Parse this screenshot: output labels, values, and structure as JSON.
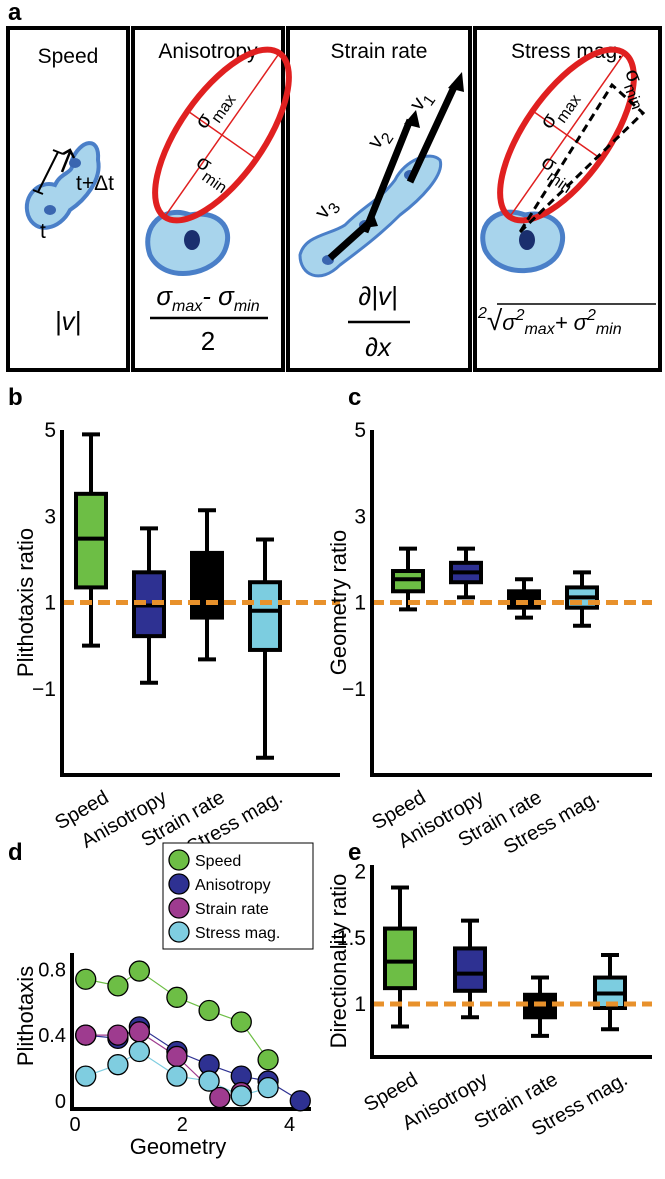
{
  "diagram": {
    "label": "a",
    "panels": [
      {
        "title": "Speed",
        "annotations": [
          "t",
          "t+Δt"
        ],
        "formula": "|v|"
      },
      {
        "title": "Anisotropy",
        "annotations": [
          "σ",
          "max",
          "σ",
          "min"
        ],
        "numerator": [
          "σ",
          "max",
          "- σ",
          "min"
        ],
        "denominator": "2"
      },
      {
        "title": "Strain rate",
        "annotations": [
          "v",
          "3",
          "v",
          "2",
          "v",
          "1"
        ],
        "numerator": "∂|v|",
        "denominator": "∂x"
      },
      {
        "title": "Stress mag.",
        "annotations": [
          "σ",
          "min",
          "σ",
          "max",
          "σ",
          "min"
        ],
        "formula": [
          "2",
          "√",
          "σ",
          "2",
          "max",
          "+ σ",
          "2",
          "min"
        ]
      }
    ]
  },
  "chart_data": [
    {
      "type": "box",
      "panel_label": "b",
      "ylabel": "Plithotaxis ratio",
      "categories": [
        "Speed",
        "Anisotropy",
        "Strain rate",
        "Stress mag."
      ],
      "colors": [
        "#6dbe45",
        "#2e3192",
        "#000000",
        "#7ccde0"
      ],
      "boxes": [
        {
          "whislo": 0,
          "q1": 1.35,
          "med": 2.48,
          "q3": 3.52,
          "whishi": 4.9
        },
        {
          "whislo": -0.86,
          "q1": 0.22,
          "med": 0.93,
          "q3": 1.7,
          "whishi": 2.72
        },
        {
          "whislo": -0.32,
          "q1": 0.65,
          "med": 1.4,
          "q3": 2.15,
          "whishi": 3.14
        },
        {
          "whislo": -2.6,
          "q1": -0.1,
          "med": 0.81,
          "q3": 1.47,
          "whishi": 2.46
        }
      ],
      "reference_line": 1,
      "reference_color": "#e8912b",
      "ylim": [
        -3,
        5
      ],
      "yticks": [
        {
          "value": -1,
          "label": "−1"
        },
        1,
        3,
        5
      ]
    },
    {
      "type": "box",
      "panel_label": "c",
      "ylabel": "Geometry ratio",
      "categories": [
        "Speed",
        "Anisotropy",
        "Strain rate",
        "Stress mag."
      ],
      "colors": [
        "#6dbe45",
        "#2e3192",
        "#000000",
        "#7ccde0"
      ],
      "boxes": [
        {
          "whislo": 0.84,
          "q1": 1.26,
          "med": 1.54,
          "q3": 1.73,
          "whishi": 2.25
        },
        {
          "whislo": 1.12,
          "q1": 1.47,
          "med": 1.7,
          "q3": 1.92,
          "whishi": 2.25
        },
        {
          "whislo": 0.65,
          "q1": 0.88,
          "med": 1.09,
          "q3": 1.26,
          "whishi": 1.54
        },
        {
          "whislo": 0.46,
          "q1": 0.88,
          "med": 1.12,
          "q3": 1.35,
          "whishi": 1.7
        }
      ],
      "reference_line": 1,
      "reference_color": "#e8912b",
      "ylim": [
        -3,
        5
      ],
      "yticks": [
        {
          "value": -1,
          "label": "−1"
        },
        1,
        3,
        5
      ]
    },
    {
      "type": "scatter",
      "panel_label": "d",
      "xlabel": "Geometry",
      "ylabel": "Plithotaxis",
      "legend": "upper right",
      "series": [
        {
          "name": "Speed",
          "color": "#6dbe45",
          "x": [
            0.2,
            0.8,
            1.2,
            1.9,
            2.5,
            3.1,
            3.6
          ],
          "y": [
            0.74,
            0.7,
            0.79,
            0.63,
            0.55,
            0.48,
            0.25
          ]
        },
        {
          "name": "Anisotropy",
          "color": "#2e3192",
          "x": [
            0.2,
            0.8,
            1.2,
            1.9,
            2.5,
            3.1,
            3.6,
            4.2
          ],
          "y": [
            0.4,
            0.38,
            0.45,
            0.3,
            0.22,
            0.15,
            0.12,
            0
          ]
        },
        {
          "name": "Strain rate",
          "color": "#9e3b8f",
          "x": [
            0.2,
            0.8,
            1.2,
            1.9,
            2.7,
            3.1
          ],
          "y": [
            0.4,
            0.4,
            0.42,
            0.27,
            0.02,
            0.05
          ]
        },
        {
          "name": "Stress mag.",
          "color": "#7fcde0",
          "x": [
            0.2,
            0.8,
            1.2,
            1.9,
            2.5,
            3.1,
            3.6
          ],
          "y": [
            0.15,
            0.22,
            0.3,
            0.15,
            0.12,
            0.03,
            0.08
          ]
        }
      ],
      "xlim": [
        0,
        4.4
      ],
      "xticks": [
        0,
        2,
        4
      ],
      "ylim": [
        -0.05,
        0.9
      ],
      "yticks": [
        0,
        0.4,
        0.8
      ]
    },
    {
      "type": "box",
      "panel_label": "e",
      "ylabel": "Directionality ratio",
      "categories": [
        "Speed",
        "Anisotropy",
        "Strain rate",
        "Stress mag."
      ],
      "colors": [
        "#6dbe45",
        "#2e3192",
        "#000000",
        "#7ccde0"
      ],
      "boxes": [
        {
          "whislo": 0.83,
          "q1": 1.12,
          "med": 1.32,
          "q3": 1.57,
          "whishi": 1.88
        },
        {
          "whislo": 0.9,
          "q1": 1.1,
          "med": 1.23,
          "q3": 1.42,
          "whishi": 1.63
        },
        {
          "whislo": 0.76,
          "q1": 0.9,
          "med": 1.0,
          "q3": 1.07,
          "whishi": 1.2
        },
        {
          "whislo": 0.81,
          "q1": 0.97,
          "med": 1.08,
          "q3": 1.2,
          "whishi": 1.37
        }
      ],
      "reference_line": 1,
      "reference_color": "#e8912b",
      "ylim": [
        0.6,
        2.05
      ],
      "yticks": [
        1,
        1.5,
        2
      ]
    }
  ]
}
